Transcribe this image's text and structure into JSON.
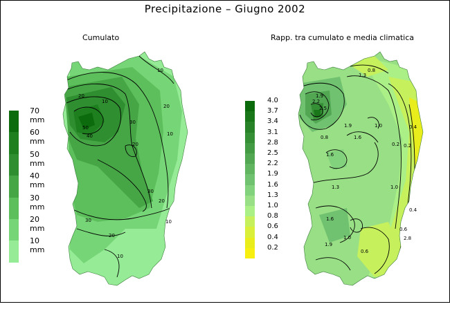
{
  "title": "Precipitazione  –  Giugno 2002",
  "panels": {
    "left": {
      "title": "Cumulato"
    },
    "right": {
      "title": "Rapp. tra cumulato e media climatica"
    }
  },
  "legend_left": {
    "labels": [
      "70 mm",
      "60 mm",
      "50 mm",
      "40 mm",
      "30 mm",
      "20 mm",
      "10 mm"
    ],
    "colors": [
      "#0c6b0c",
      "#1e7f1e",
      "#2f8e2f",
      "#46a646",
      "#5cbf5c",
      "#76d576",
      "#96ec96"
    ]
  },
  "legend_right": {
    "labels": [
      "4.0",
      "3.7",
      "3.4",
      "3.1",
      "2.8",
      "2.5",
      "2.2",
      "1.9",
      "1.6",
      "1.3",
      "1.0",
      "0.8",
      "0.6",
      "0.4",
      "0.2"
    ],
    "colors": [
      "#0b6a0b",
      "#197619",
      "#288328",
      "#358f35",
      "#439b43",
      "#52a852",
      "#61b561",
      "#70c270",
      "#82d17c",
      "#98df85",
      "#aaf086",
      "#c6f05c",
      "#d9ef3a",
      "#e9ed1c",
      "#f6ef10"
    ]
  },
  "contour_labels_left": [
    "10",
    "20",
    "30",
    "40",
    "50",
    "30",
    "20",
    "10",
    "30",
    "20",
    "10",
    "20",
    "10",
    "10",
    "20",
    "30",
    "10"
  ],
  "contour_labels_right": [
    "0.8",
    "1.3",
    "1.9",
    "2.5",
    "2.2",
    "1.9",
    "1.6",
    "1.0",
    "0.4",
    "0.2",
    "1.0",
    "1.3",
    "1.6",
    "1.9",
    "0.6",
    "2.8",
    "0.4",
    "0.2",
    "0.6",
    "1.0",
    "1.6",
    "0.8"
  ]
}
